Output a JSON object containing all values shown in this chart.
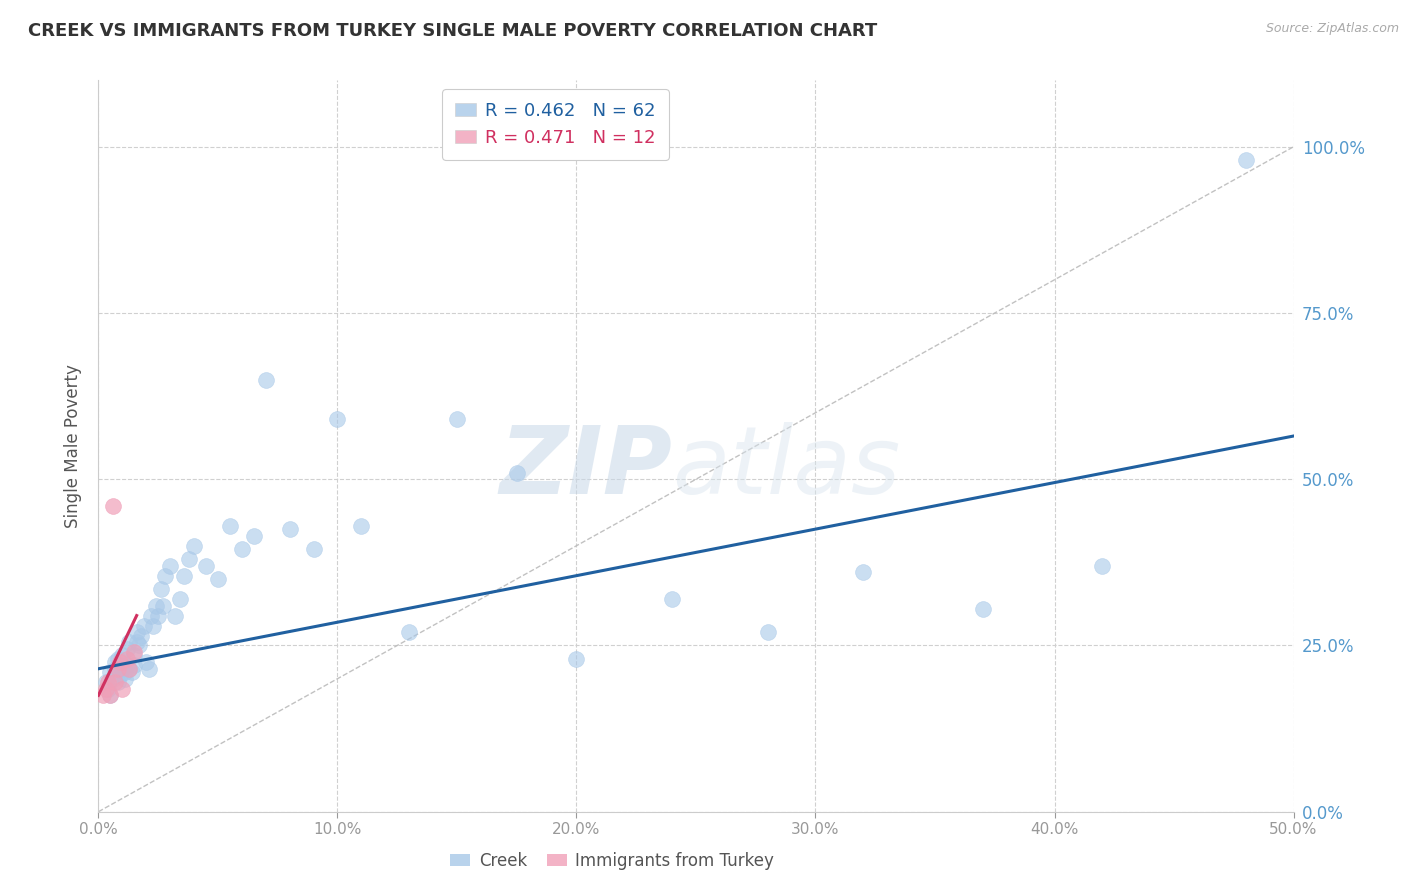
{
  "title": "CREEK VS IMMIGRANTS FROM TURKEY SINGLE MALE POVERTY CORRELATION CHART",
  "source": "Source: ZipAtlas.com",
  "ylabel": "Single Male Poverty",
  "watermark_zip": "ZIP",
  "watermark_atlas": "atlas",
  "xlim": [
    0,
    0.5
  ],
  "ylim": [
    0,
    1.1
  ],
  "x_ticks": [
    0.0,
    0.1,
    0.2,
    0.3,
    0.4,
    0.5
  ],
  "y_ticks": [
    0.0,
    0.25,
    0.5,
    0.75,
    1.0
  ],
  "grid_color": "#d0d0d0",
  "background_color": "#ffffff",
  "creek_color": "#a8c8e8",
  "turkey_color": "#f0a0b8",
  "creek_line_color": "#2060a0",
  "turkey_line_color": "#d03060",
  "creek_R": 0.462,
  "creek_N": 62,
  "turkey_R": 0.471,
  "turkey_N": 12,
  "creek_scatter_x": [
    0.003,
    0.004,
    0.005,
    0.005,
    0.006,
    0.007,
    0.007,
    0.008,
    0.008,
    0.009,
    0.009,
    0.01,
    0.01,
    0.011,
    0.011,
    0.012,
    0.012,
    0.013,
    0.013,
    0.014,
    0.015,
    0.015,
    0.016,
    0.016,
    0.017,
    0.018,
    0.019,
    0.02,
    0.021,
    0.022,
    0.023,
    0.024,
    0.025,
    0.026,
    0.027,
    0.028,
    0.03,
    0.032,
    0.034,
    0.036,
    0.038,
    0.04,
    0.045,
    0.05,
    0.055,
    0.06,
    0.065,
    0.07,
    0.08,
    0.09,
    0.1,
    0.11,
    0.13,
    0.15,
    0.175,
    0.2,
    0.24,
    0.28,
    0.32,
    0.37,
    0.42,
    0.48
  ],
  "creek_scatter_y": [
    0.195,
    0.185,
    0.21,
    0.175,
    0.2,
    0.215,
    0.225,
    0.195,
    0.23,
    0.205,
    0.22,
    0.215,
    0.235,
    0.2,
    0.21,
    0.22,
    0.245,
    0.215,
    0.255,
    0.21,
    0.22,
    0.235,
    0.255,
    0.27,
    0.25,
    0.265,
    0.28,
    0.225,
    0.215,
    0.295,
    0.28,
    0.31,
    0.295,
    0.335,
    0.31,
    0.355,
    0.37,
    0.295,
    0.32,
    0.355,
    0.38,
    0.4,
    0.37,
    0.35,
    0.43,
    0.395,
    0.415,
    0.65,
    0.425,
    0.395,
    0.59,
    0.43,
    0.27,
    0.59,
    0.51,
    0.23,
    0.32,
    0.27,
    0.36,
    0.305,
    0.37,
    0.98
  ],
  "turkey_scatter_x": [
    0.002,
    0.003,
    0.004,
    0.005,
    0.006,
    0.007,
    0.008,
    0.009,
    0.01,
    0.012,
    0.013,
    0.015
  ],
  "turkey_scatter_y": [
    0.175,
    0.185,
    0.195,
    0.175,
    0.46,
    0.195,
    0.215,
    0.225,
    0.185,
    0.23,
    0.215,
    0.24
  ],
  "creek_trendline_x": [
    0.0,
    0.5
  ],
  "creek_trendline_y": [
    0.215,
    0.565
  ],
  "turkey_trendline_x": [
    0.0,
    0.016
  ],
  "turkey_trendline_y": [
    0.175,
    0.295
  ],
  "diag_line_x": [
    0.0,
    0.5
  ],
  "diag_line_y": [
    0.0,
    1.0
  ]
}
